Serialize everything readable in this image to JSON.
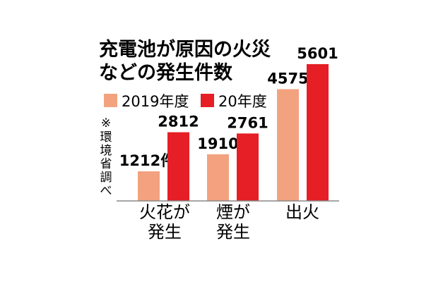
{
  "chart_data": {
    "type": "bar",
    "title": [
      "充電池が原因の火災",
      "などの発生件数"
    ],
    "note": [
      "※",
      "環",
      "境",
      "省",
      "調",
      "べ"
    ],
    "categories": [
      [
        "火花が",
        "発生"
      ],
      [
        "煙が",
        "発生"
      ],
      [
        "出火"
      ]
    ],
    "series": [
      {
        "name": "2019年度",
        "color": "#f3a27f",
        "values": [
          1212,
          1910,
          4575
        ]
      },
      {
        "name": "20年度",
        "color": "#e51f25",
        "values": [
          2812,
          2761,
          5601
        ]
      }
    ],
    "value_labels": [
      [
        "1212件",
        "1910",
        "4575"
      ],
      [
        "2812",
        "2761",
        "5601"
      ]
    ],
    "ylim": [
      0,
      6000
    ],
    "grid": false,
    "legend_position": "top"
  }
}
